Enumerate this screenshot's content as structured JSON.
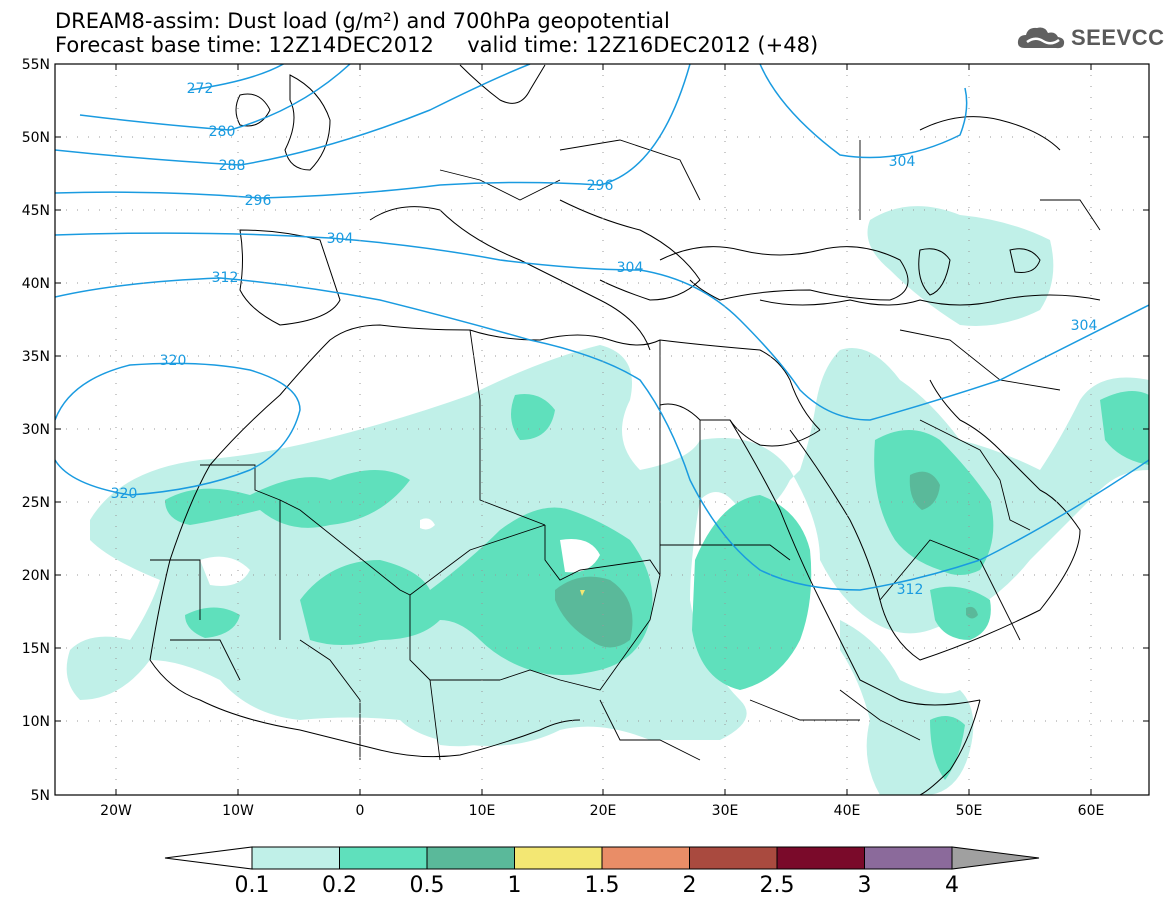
{
  "header": {
    "title_line1": "DREAM8-assim: Dust load (g/m²) and 700hPa geopotential",
    "title_line2": "Forecast base time: 12Z14DEC2012     valid time: 12Z16DEC2012 (+48)",
    "logo_text": "SEEVCCC"
  },
  "map": {
    "lat_labels": [
      "55N",
      "50N",
      "45N",
      "40N",
      "35N",
      "30N",
      "25N",
      "20N",
      "15N",
      "10N",
      "5N"
    ],
    "lon_labels": [
      "20W",
      "10W",
      "0",
      "10E",
      "20E",
      "30E",
      "40E",
      "50E",
      "60E"
    ],
    "contour_color": "#1a9be0",
    "contour_labels": [
      "272",
      "280",
      "288",
      "296",
      "296",
      "304",
      "304",
      "304",
      "304",
      "312",
      "312",
      "320",
      "320"
    ]
  },
  "colorbar": {
    "tick_labels": [
      "0.1",
      "0.2",
      "0.5",
      "1",
      "1.5",
      "2",
      "2.5",
      "3",
      "4"
    ],
    "colors": [
      "#ffffff",
      "#c0f0e8",
      "#5fe0bc",
      "#5ab99a",
      "#f3e773",
      "#e98d67",
      "#a94a3f",
      "#7a0a2a",
      "#8b6a9b",
      "#a0a0a0"
    ]
  }
}
